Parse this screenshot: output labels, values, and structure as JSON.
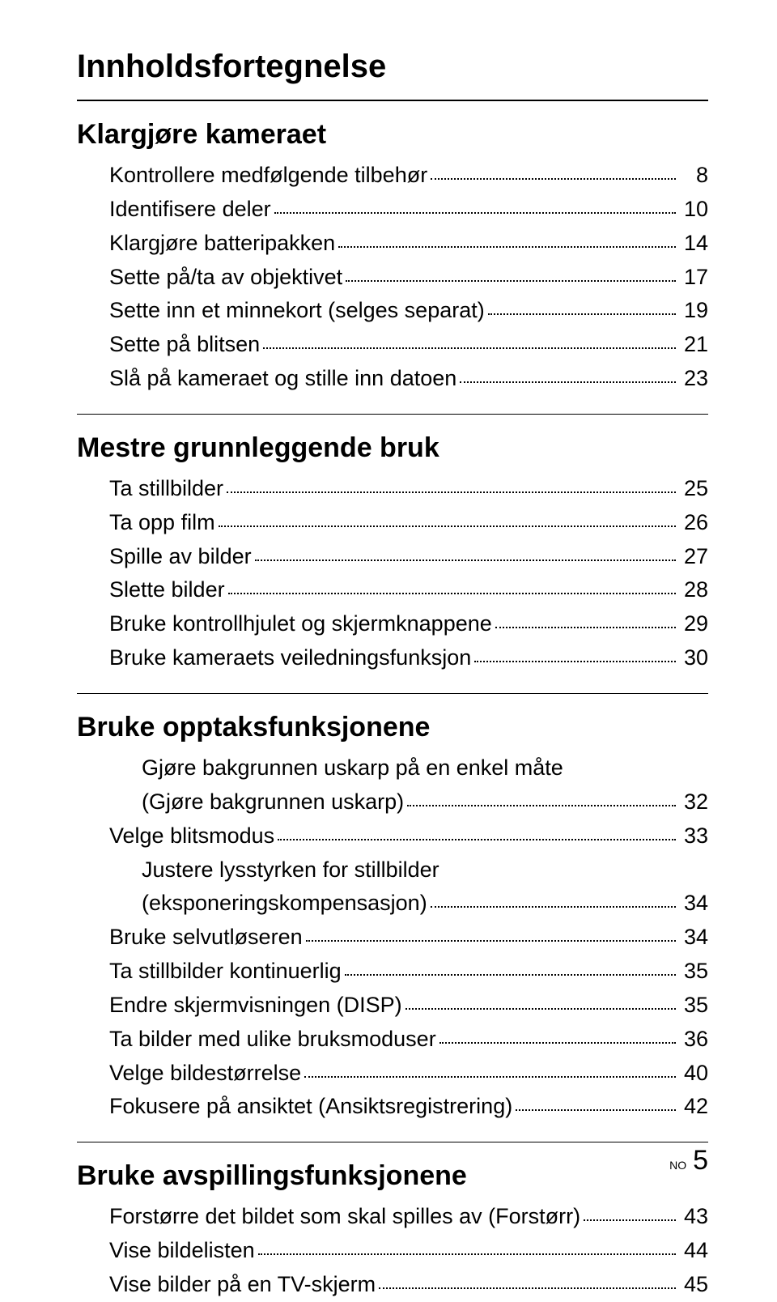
{
  "colors": {
    "text": "#000000",
    "background": "#ffffff",
    "rule": "#000000"
  },
  "typography": {
    "title_fontsize": 40,
    "section_fontsize": 34,
    "item_fontsize": 27,
    "footer_label_fontsize": 14,
    "footer_page_fontsize": 34
  },
  "title": "Innholdsfortegnelse",
  "sections": [
    {
      "heading": "Klargjøre kameraet",
      "items": [
        {
          "label": "Kontrollere medfølgende tilbehør",
          "page": "8"
        },
        {
          "label": "Identifisere deler",
          "page": "10"
        },
        {
          "label": "Klargjøre batteripakken",
          "page": "14"
        },
        {
          "label": "Sette på/ta av objektivet",
          "page": "17"
        },
        {
          "label": "Sette inn et minnekort (selges separat)",
          "page": "19"
        },
        {
          "label": "Sette på blitsen",
          "page": "21"
        },
        {
          "label": "Slå på kameraet og stille inn datoen",
          "page": "23"
        }
      ]
    },
    {
      "heading": "Mestre grunnleggende bruk",
      "items": [
        {
          "label": "Ta stillbilder",
          "page": "25"
        },
        {
          "label": "Ta opp film",
          "page": "26"
        },
        {
          "label": "Spille av bilder",
          "page": "27"
        },
        {
          "label": "Slette bilder",
          "page": "28"
        },
        {
          "label": "Bruke kontrollhjulet og skjermknappene",
          "page": "29"
        },
        {
          "label": "Bruke kameraets veiledningsfunksjon",
          "page": "30"
        }
      ]
    },
    {
      "heading": "Bruke opptaksfunksjonene",
      "items": [
        {
          "label_line1": "Gjøre bakgrunnen uskarp på en enkel måte",
          "label_line2": "(Gjøre bakgrunnen uskarp)",
          "page": "32",
          "multiline": true
        },
        {
          "label": "Velge blitsmodus",
          "page": "33"
        },
        {
          "label_line1": "Justere lysstyrken for stillbilder",
          "label_line2": "(eksponeringskompensasjon)",
          "page": "34",
          "multiline": true
        },
        {
          "label": "Bruke selvutløseren",
          "page": "34"
        },
        {
          "label": "Ta stillbilder kontinuerlig",
          "page": "35"
        },
        {
          "label": "Endre skjermvisningen (DISP)",
          "page": "35"
        },
        {
          "label": "Ta bilder med ulike bruksmoduser",
          "page": "36"
        },
        {
          "label": "Velge bildestørrelse",
          "page": "40"
        },
        {
          "label": "Fokusere på ansiktet (Ansiktsregistrering)",
          "page": "42"
        }
      ]
    },
    {
      "heading": "Bruke avspillingsfunksjonene",
      "items": [
        {
          "label": "Forstørre det bildet som skal spilles av (Forstørr)",
          "page": "43"
        },
        {
          "label": "Vise bildelisten",
          "page": "44"
        },
        {
          "label": "Vise bilder på en TV-skjerm",
          "page": "45"
        }
      ]
    }
  ],
  "footer": {
    "label": "NO",
    "page": "5"
  }
}
